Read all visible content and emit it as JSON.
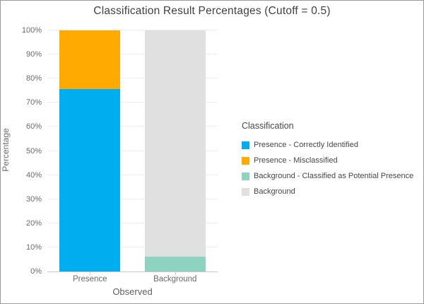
{
  "window": {
    "border_color": "#9b9b9b",
    "background": "#ffffff"
  },
  "chart_data": {
    "type": "bar",
    "stacked": true,
    "title": "Classification Result Percentages (Cutoff = 0.5)",
    "xlabel": "Observed",
    "ylabel": "Percentage",
    "categories": [
      "Presence",
      "Background"
    ],
    "series": [
      {
        "name": "Presence - Correctly Identified",
        "color": "#00aeef",
        "values": [
          75.7,
          0
        ]
      },
      {
        "name": "Presence - Misclassified",
        "color": "#ffaa00",
        "values": [
          24.3,
          0
        ]
      },
      {
        "name": "Background - Classified as Potential Presence",
        "color": "#8ed3c2",
        "values": [
          0,
          6.2
        ]
      },
      {
        "name": "Background",
        "color": "#e0e0e0",
        "values": [
          0,
          93.8
        ]
      }
    ],
    "ylim": [
      0,
      100
    ],
    "yticks": [
      "0%",
      "10%",
      "20%",
      "30%",
      "40%",
      "50%",
      "60%",
      "70%",
      "80%",
      "90%",
      "100%"
    ],
    "grid": true,
    "legend_title": "Classification",
    "legend_position": "right"
  }
}
